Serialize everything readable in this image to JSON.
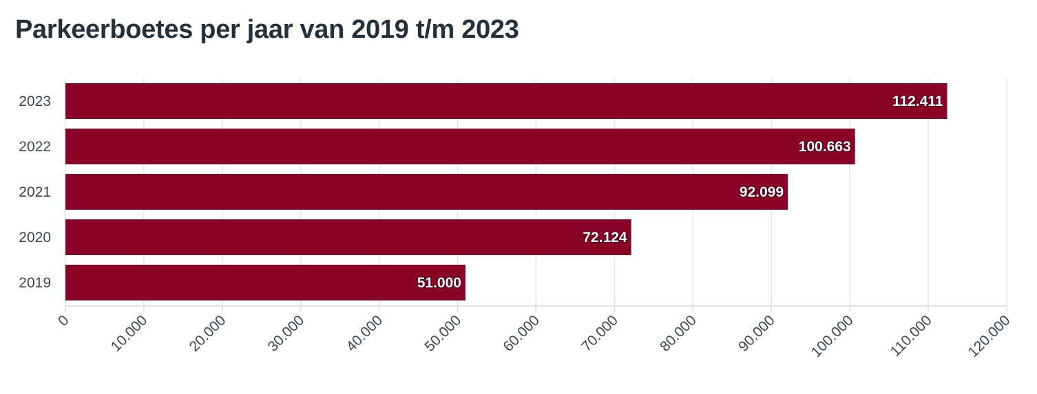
{
  "colors": {
    "bar": "#8a0428",
    "title": "#25313a"
  },
  "chart_data": {
    "type": "bar",
    "orientation": "horizontal",
    "title": "Parkeerboetes per jaar van 2019 t/m 2023",
    "xlabel": "",
    "ylabel": "",
    "categories": [
      "2023",
      "2022",
      "2021",
      "2020",
      "2019"
    ],
    "values": [
      112411,
      100663,
      92099,
      72124,
      51000
    ],
    "value_labels": [
      "112.411",
      "100.663",
      "92.099",
      "72.124",
      "51.000"
    ],
    "xlim": [
      0,
      120000
    ],
    "x_ticks": [
      0,
      10000,
      20000,
      30000,
      40000,
      50000,
      60000,
      70000,
      80000,
      90000,
      100000,
      110000,
      120000
    ],
    "x_tick_labels": [
      "0",
      "10.000",
      "20.000",
      "30.000",
      "40.000",
      "50.000",
      "60.000",
      "70.000",
      "80.000",
      "90.000",
      "100.000",
      "110.000",
      "120.000"
    ],
    "grid": true,
    "legend": "none"
  }
}
